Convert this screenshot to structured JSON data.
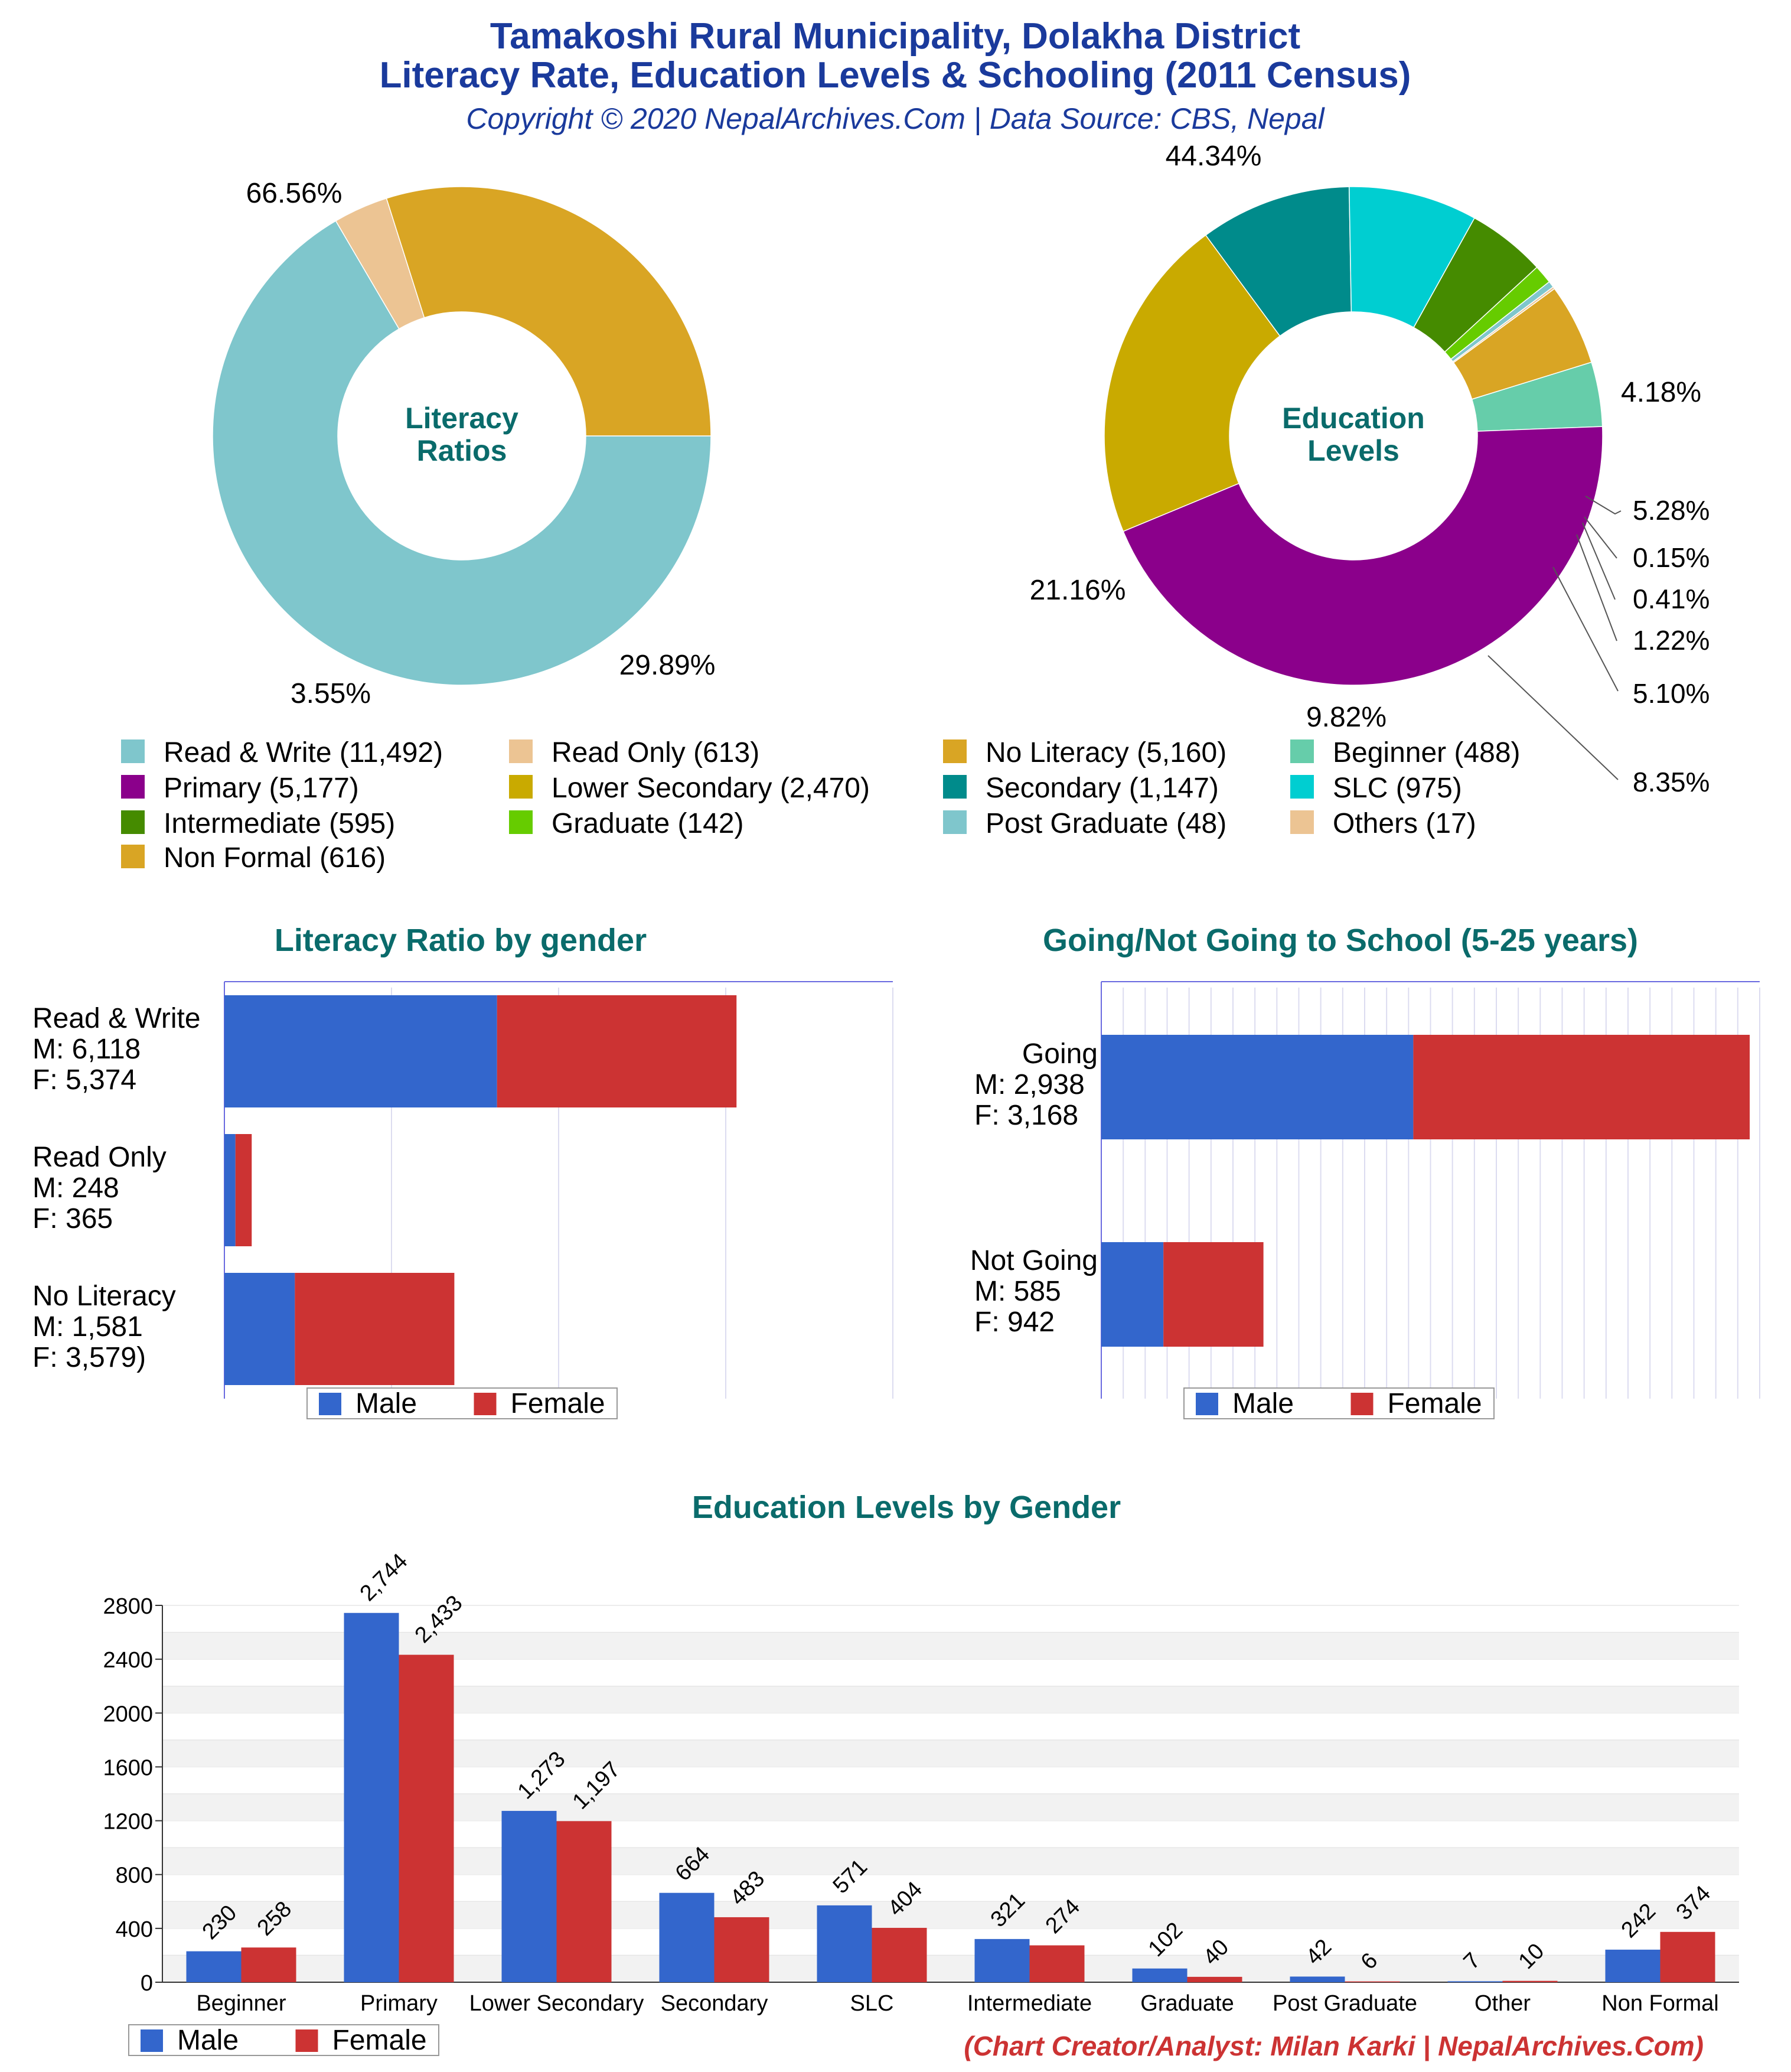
{
  "header": {
    "title_line1": "Tamakoshi Rural Municipality, Dolakha District",
    "title_line2": "Literacy Rate, Education Levels & Schooling (2011 Census)",
    "subtitle": "Copyright © 2020 NepalArchives.Com | Data Source: CBS, Nepal"
  },
  "colors": {
    "title": "#1a3a9c",
    "section_title": "#0a6b6b",
    "male": "#3366cc",
    "female": "#cc3333",
    "credit": "#cc3333",
    "center_label": "#0a6b6b"
  },
  "legend_items": [
    {
      "label": "Read & Write (11,492)",
      "color": "#7fc6cc"
    },
    {
      "label": "Read Only (613)",
      "color": "#ecc493"
    },
    {
      "label": "No Literacy (5,160)",
      "color": "#d9a524"
    },
    {
      "label": "Beginner (488)",
      "color": "#66cdaa"
    },
    {
      "label": "Primary (5,177)",
      "color": "#8b008b"
    },
    {
      "label": "Lower Secondary (2,470)",
      "color": "#c9aa00"
    },
    {
      "label": "Secondary (1,147)",
      "color": "#008b8b"
    },
    {
      "label": "SLC (975)",
      "color": "#00ced1"
    },
    {
      "label": "Intermediate (595)",
      "color": "#458b00"
    },
    {
      "label": "Graduate (142)",
      "color": "#66cc00"
    },
    {
      "label": "Post Graduate (48)",
      "color": "#7fc6cc"
    },
    {
      "label": "Others (17)",
      "color": "#ecc493"
    },
    {
      "label": "Non Formal (616)",
      "color": "#d9a524"
    }
  ],
  "chart_data": [
    {
      "type": "pie",
      "center_label": [
        "Literacy",
        "Ratios"
      ],
      "slices": [
        {
          "label": "Read & Write",
          "value": 11492,
          "pct_label": "66.56%",
          "color": "#7fc6cc"
        },
        {
          "label": "Read Only",
          "value": 613,
          "pct_label": "3.55%",
          "color": "#ecc493"
        },
        {
          "label": "No Literacy",
          "value": 5160,
          "pct_label": "29.89%",
          "color": "#d9a524"
        }
      ]
    },
    {
      "type": "pie",
      "center_label": [
        "Education",
        "Levels"
      ],
      "slices": [
        {
          "label": "Beginner",
          "value": 488,
          "pct_label": "4.18%",
          "color": "#66cdaa"
        },
        {
          "label": "Primary",
          "value": 5177,
          "pct_label": "44.34%",
          "color": "#8b008b"
        },
        {
          "label": "Lower Secondary",
          "value": 2470,
          "pct_label": "21.16%",
          "color": "#c9aa00"
        },
        {
          "label": "Secondary",
          "value": 1147,
          "pct_label": "9.82%",
          "color": "#008b8b"
        },
        {
          "label": "SLC",
          "value": 975,
          "pct_label": "8.35%",
          "color": "#00ced1"
        },
        {
          "label": "Intermediate",
          "value": 595,
          "pct_label": "5.10%",
          "color": "#458b00"
        },
        {
          "label": "Graduate",
          "value": 142,
          "pct_label": "1.22%",
          "color": "#66cc00"
        },
        {
          "label": "Post Graduate",
          "value": 48,
          "pct_label": "0.41%",
          "color": "#7fc6cc"
        },
        {
          "label": "Others",
          "value": 17,
          "pct_label": "0.15%",
          "color": "#ecc493"
        },
        {
          "label": "Non Formal",
          "value": 616,
          "pct_label": "5.28%",
          "color": "#d9a524"
        }
      ]
    },
    {
      "type": "bar",
      "orientation": "horizontal-stacked",
      "title": "Literacy Ratio by gender",
      "categories": [
        {
          "lines": [
            "Read & Write",
            "M: 6,118",
            "F: 5,374"
          ]
        },
        {
          "lines": [
            "Read Only",
            "M: 248",
            "F: 365"
          ]
        },
        {
          "lines": [
            "No Literacy",
            "M: 1,581",
            "F: 3,579)"
          ]
        }
      ],
      "series": [
        {
          "name": "Male",
          "values": [
            6118,
            248,
            1581
          ]
        },
        {
          "name": "Female",
          "values": [
            5374,
            365,
            3579
          ]
        }
      ],
      "xlim": [
        0,
        15000
      ]
    },
    {
      "type": "bar",
      "orientation": "horizontal-stacked",
      "title": "Going/Not Going to School (5-25 years)",
      "categories": [
        {
          "lines": [
            "Going",
            "M: 2,938",
            "F: 3,168"
          ]
        },
        {
          "lines": [
            "Not Going",
            "M: 585",
            "F: 942"
          ]
        }
      ],
      "series": [
        {
          "name": "Male",
          "values": [
            2938,
            585
          ]
        },
        {
          "name": "Female",
          "values": [
            3168,
            942
          ]
        }
      ],
      "xlim": [
        0,
        6200
      ]
    },
    {
      "type": "bar",
      "title": "Education Levels by Gender",
      "categories": [
        "Beginner",
        "Primary",
        "Lower Secondary",
        "Secondary",
        "SLC",
        "Intermediate",
        "Graduate",
        "Post Graduate",
        "Other",
        "Non Formal"
      ],
      "series": [
        {
          "name": "Male",
          "values": [
            230,
            2744,
            1273,
            664,
            571,
            321,
            102,
            42,
            7,
            242
          ],
          "labels": [
            "230",
            "2,744",
            "1,273",
            "664",
            "571",
            "321",
            "102",
            "42",
            "7",
            "242"
          ]
        },
        {
          "name": "Female",
          "values": [
            258,
            2433,
            1197,
            483,
            404,
            274,
            40,
            6,
            10,
            374
          ],
          "labels": [
            "258",
            "2,433",
            "1,197",
            "483",
            "404",
            "274",
            "40",
            "6",
            "10",
            "374"
          ]
        }
      ],
      "yticks": [
        "0",
        "400",
        "800",
        "1200",
        "1600",
        "2000",
        "2400",
        "2800"
      ],
      "ylim": [
        0,
        2800
      ]
    }
  ],
  "credit": "(Chart Creator/Analyst: Milan Karki | NepalArchives.Com)"
}
